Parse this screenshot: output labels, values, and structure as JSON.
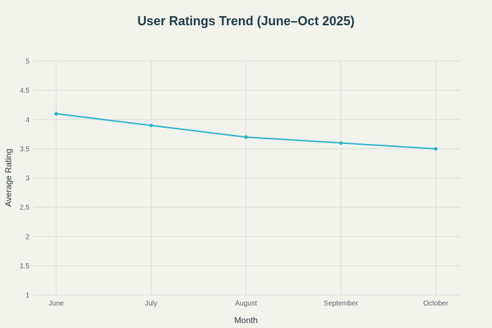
{
  "chart_data": {
    "type": "line",
    "title": "User Ratings Trend (June–Oct 2025)",
    "xlabel": "Month",
    "ylabel": "Average Rating",
    "categories": [
      "June",
      "July",
      "August",
      "September",
      "October"
    ],
    "series": [
      {
        "name": "Average Rating",
        "values": [
          4.1,
          3.9,
          3.7,
          3.6,
          3.5
        ]
      }
    ],
    "ylim": [
      1,
      5
    ],
    "yticks": [
      "1",
      "1.5",
      "2",
      "2.5",
      "3",
      "3.5",
      "4",
      "4.5",
      "5"
    ],
    "grid": true,
    "colors": {
      "line": "#2ab4c8",
      "background": "#f3f3ee"
    }
  }
}
